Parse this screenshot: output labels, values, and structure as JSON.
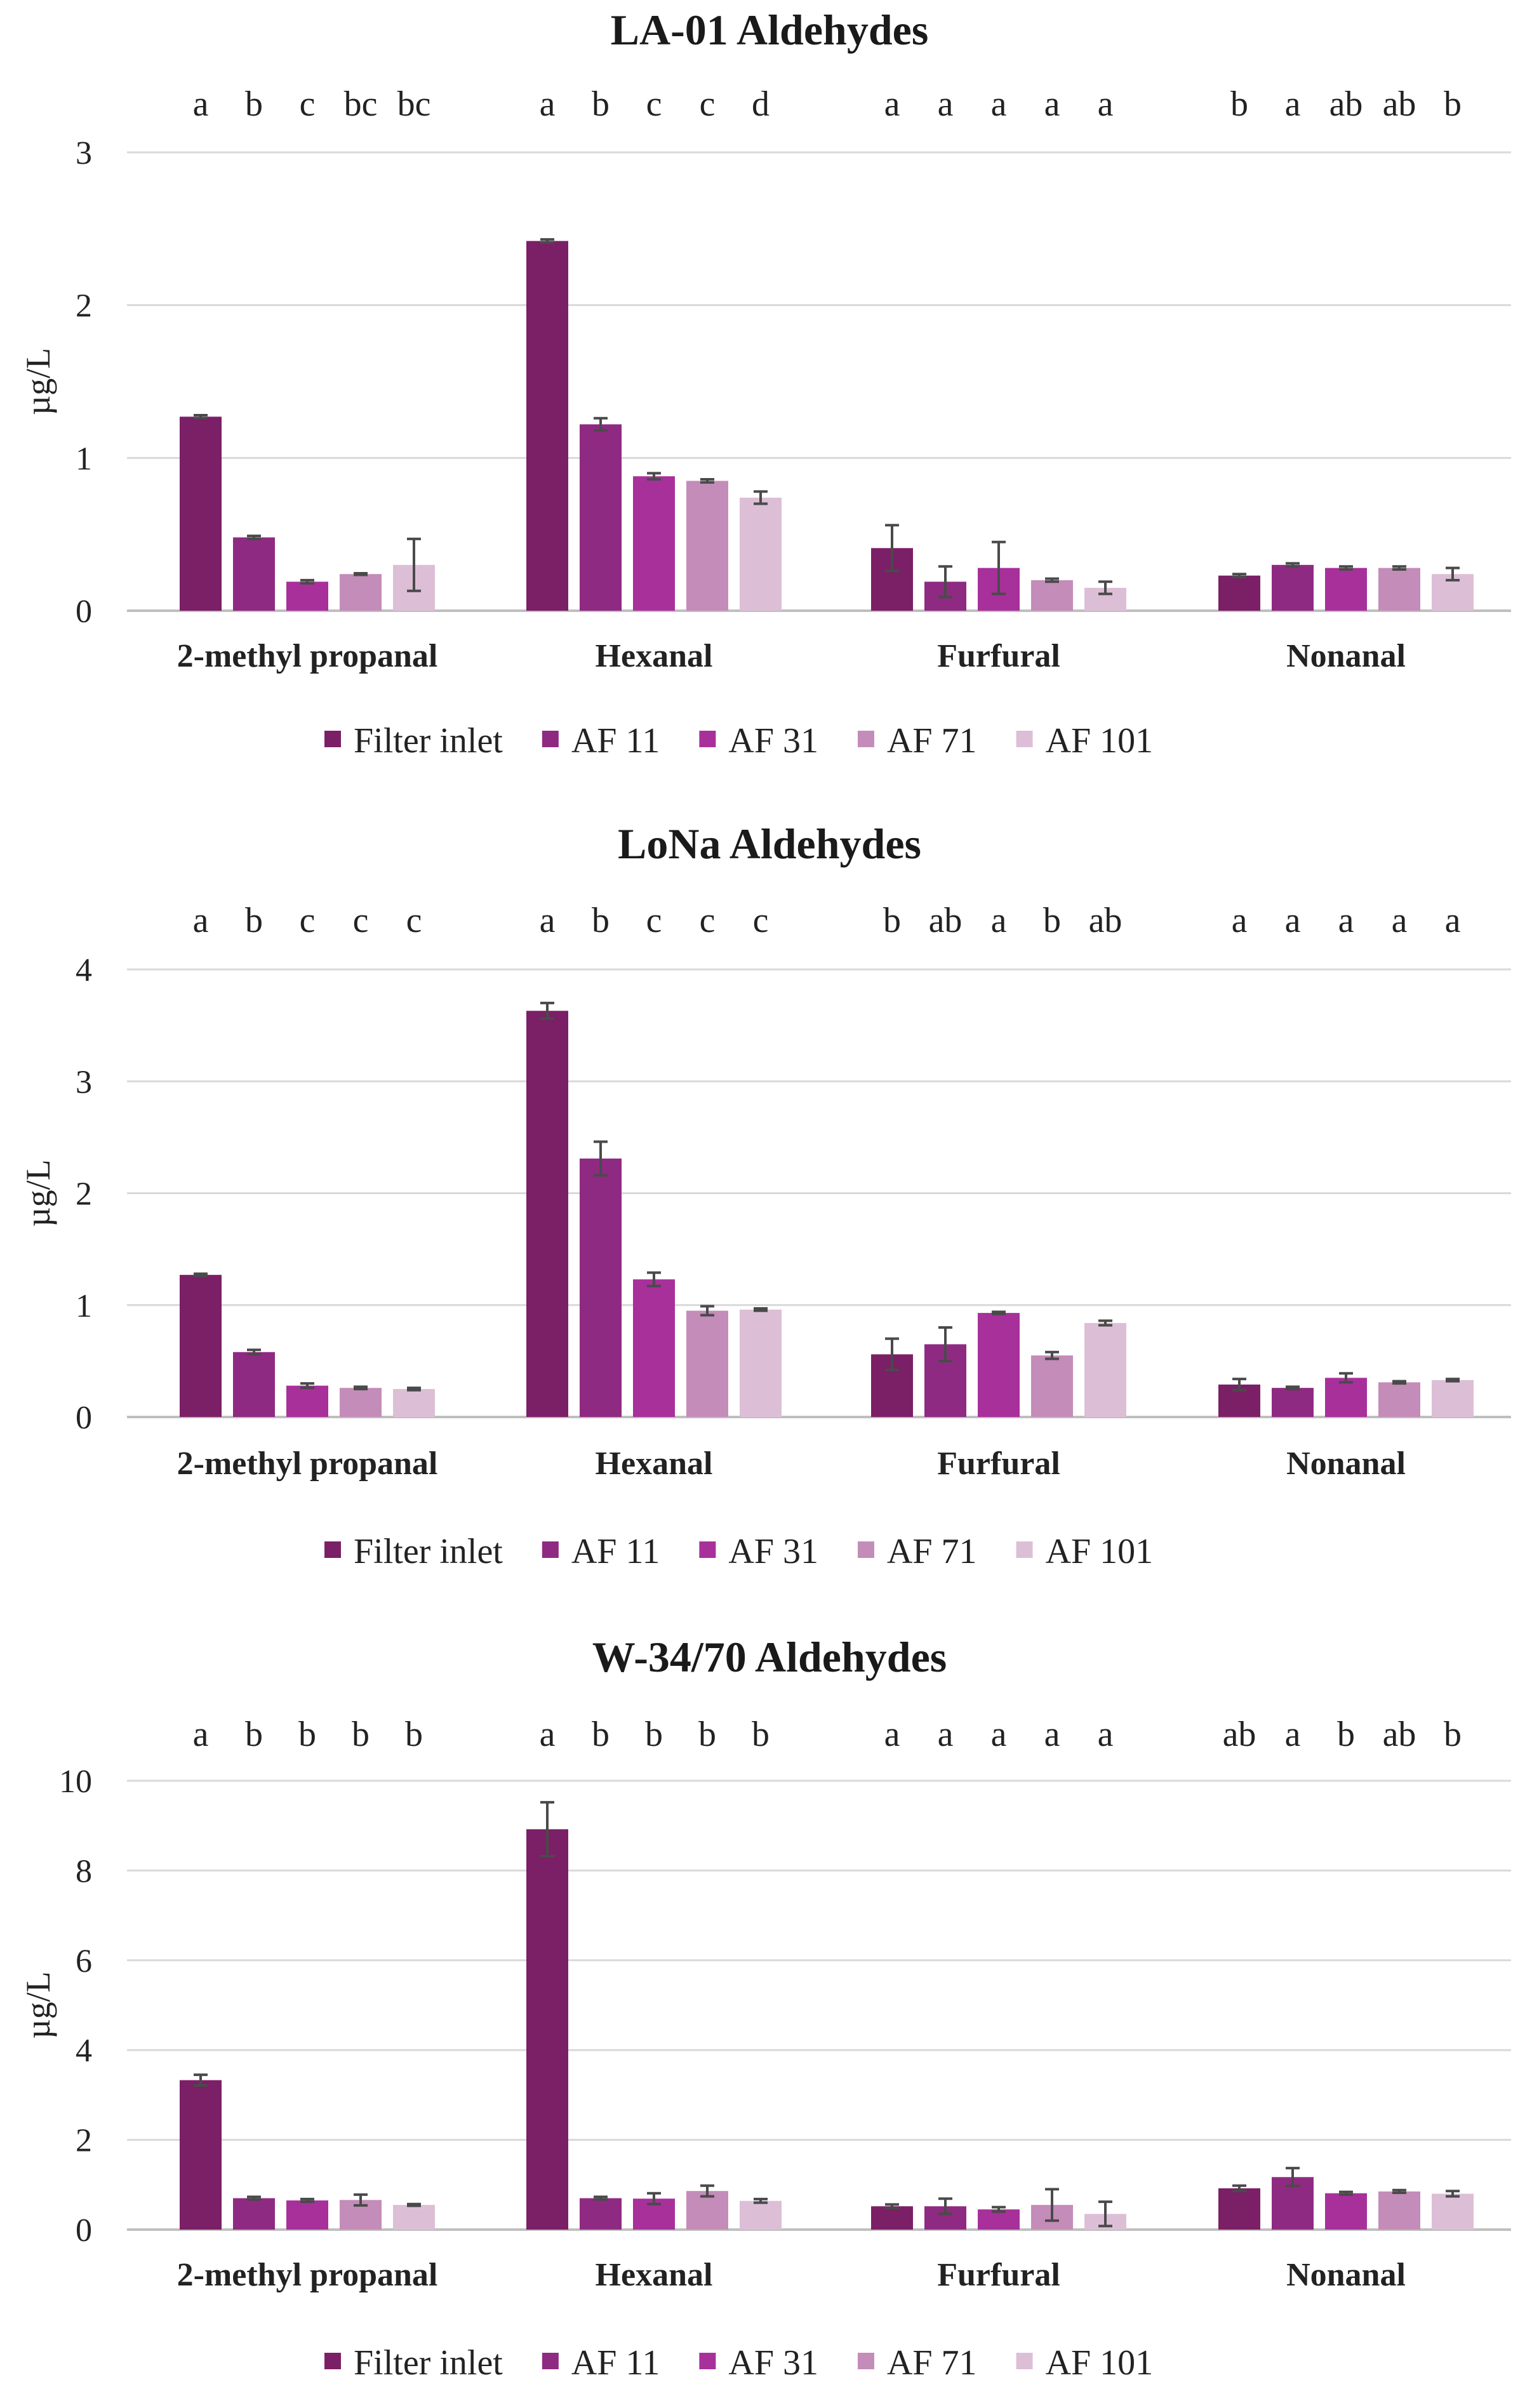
{
  "series_names": [
    "Filter inlet",
    "AF 11",
    "AF 31",
    "AF 71",
    "AF 101"
  ],
  "colors": [
    "#7b1f66",
    "#8f2a82",
    "#a8309b",
    "#c48cb8",
    "#dcbfd6"
  ],
  "chart_data": [
    {
      "type": "bar",
      "title": "LA-01 Aldehydes",
      "ylabel": "µg/L",
      "xlabel": "",
      "ylim": [
        0,
        3
      ],
      "yticks": [
        0,
        1,
        2,
        3
      ],
      "categories": [
        "2-methyl propanal",
        "Hexanal",
        "Furfural",
        "Nonanal"
      ],
      "series": [
        {
          "name": "Filter inlet",
          "values": [
            1.27,
            2.42,
            0.41,
            0.23
          ],
          "errors": [
            0.01,
            0.01,
            0.15,
            0.01
          ]
        },
        {
          "name": "AF 11",
          "values": [
            0.48,
            1.22,
            0.19,
            0.3
          ],
          "errors": [
            0.01,
            0.04,
            0.1,
            0.01
          ]
        },
        {
          "name": "AF 31",
          "values": [
            0.19,
            0.88,
            0.28,
            0.28
          ],
          "errors": [
            0.01,
            0.02,
            0.17,
            0.01
          ]
        },
        {
          "name": "AF 71",
          "values": [
            0.24,
            0.85,
            0.2,
            0.28
          ],
          "errors": [
            0.005,
            0.01,
            0.01,
            0.01
          ]
        },
        {
          "name": "AF 101",
          "values": [
            0.3,
            0.74,
            0.15,
            0.24
          ],
          "errors": [
            0.17,
            0.04,
            0.04,
            0.04
          ]
        }
      ],
      "significance": [
        [
          "a",
          "b",
          "c",
          "bc",
          "bc"
        ],
        [
          "a",
          "b",
          "c",
          "c",
          "d"
        ],
        [
          "a",
          "a",
          "a",
          "a",
          "a"
        ],
        [
          "b",
          "a",
          "ab",
          "ab",
          "b"
        ]
      ],
      "grid": true,
      "legend_position": "bottom"
    },
    {
      "type": "bar",
      "title": "LoNa Aldehydes",
      "ylabel": "µg/L",
      "xlabel": "",
      "ylim": [
        0,
        4
      ],
      "yticks": [
        0,
        1,
        2,
        3,
        4
      ],
      "categories": [
        "2-methyl propanal",
        "Hexanal",
        "Furfural",
        "Nonanal"
      ],
      "series": [
        {
          "name": "Filter inlet",
          "values": [
            1.27,
            3.63,
            0.56,
            0.29
          ],
          "errors": [
            0.01,
            0.07,
            0.14,
            0.05
          ]
        },
        {
          "name": "AF 11",
          "values": [
            0.58,
            2.31,
            0.65,
            0.26
          ],
          "errors": [
            0.02,
            0.15,
            0.15,
            0.01
          ]
        },
        {
          "name": "AF 31",
          "values": [
            0.28,
            1.23,
            0.93,
            0.35
          ],
          "errors": [
            0.02,
            0.06,
            0.01,
            0.04
          ]
        },
        {
          "name": "AF 71",
          "values": [
            0.26,
            0.95,
            0.55,
            0.31
          ],
          "errors": [
            0.01,
            0.04,
            0.03,
            0.01
          ]
        },
        {
          "name": "AF 101",
          "values": [
            0.25,
            0.96,
            0.84,
            0.33
          ],
          "errors": [
            0.01,
            0.01,
            0.02,
            0.01
          ]
        }
      ],
      "significance": [
        [
          "a",
          "b",
          "c",
          "c",
          "c"
        ],
        [
          "a",
          "b",
          "c",
          "c",
          "c"
        ],
        [
          "b",
          "ab",
          "a",
          "b",
          "ab"
        ],
        [
          "a",
          "a",
          "a",
          "a",
          "a"
        ]
      ],
      "grid": true,
      "legend_position": "bottom"
    },
    {
      "type": "bar",
      "title": "W-34/70 Aldehydes",
      "ylabel": "µg/L",
      "xlabel": "",
      "ylim": [
        0,
        10
      ],
      "yticks": [
        0,
        2,
        4,
        6,
        8,
        10
      ],
      "categories": [
        "2-methyl propanal",
        "Hexanal",
        "Furfural",
        "Nonanal"
      ],
      "series": [
        {
          "name": "Filter inlet",
          "values": [
            3.33,
            8.92,
            0.52,
            0.92
          ],
          "errors": [
            0.12,
            0.6,
            0.04,
            0.06
          ]
        },
        {
          "name": "AF 11",
          "values": [
            0.7,
            0.7,
            0.52,
            1.17
          ],
          "errors": [
            0.03,
            0.03,
            0.17,
            0.2
          ]
        },
        {
          "name": "AF 31",
          "values": [
            0.65,
            0.69,
            0.45,
            0.81
          ],
          "errors": [
            0.03,
            0.12,
            0.05,
            0.03
          ]
        },
        {
          "name": "AF 71",
          "values": [
            0.66,
            0.86,
            0.55,
            0.85
          ],
          "errors": [
            0.12,
            0.12,
            0.35,
            0.03
          ]
        },
        {
          "name": "AF 101",
          "values": [
            0.55,
            0.64,
            0.35,
            0.8
          ],
          "errors": [
            0.02,
            0.04,
            0.27,
            0.06
          ]
        }
      ],
      "significance": [
        [
          "a",
          "b",
          "b",
          "b",
          "b"
        ],
        [
          "a",
          "b",
          "b",
          "b",
          "b"
        ],
        [
          "a",
          "a",
          "a",
          "a",
          "a"
        ],
        [
          "ab",
          "a",
          "b",
          "ab",
          "b"
        ]
      ],
      "grid": true,
      "legend_position": "bottom"
    }
  ]
}
